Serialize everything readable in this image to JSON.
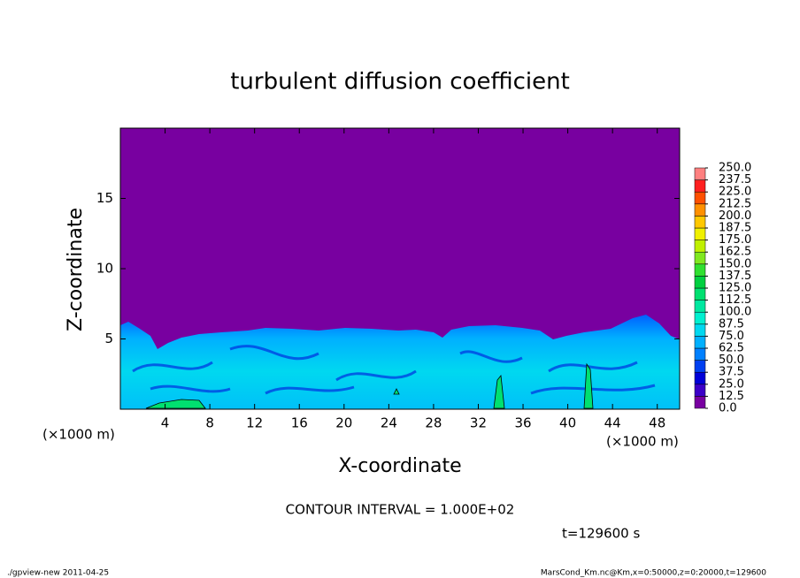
{
  "chart_data": {
    "type": "contour",
    "title": "turbulent diffusion coefficient",
    "x_label": "X-coordinate",
    "y_label": "Z-coordinate",
    "x_unit": "(×1000 m)",
    "y_unit": "(×1000 m)",
    "xlim": [
      0,
      50
    ],
    "ylim": [
      0,
      20
    ],
    "xticks": [
      4,
      8,
      12,
      16,
      20,
      24,
      28,
      32,
      36,
      40,
      44,
      48
    ],
    "yticks": [
      5,
      10,
      15
    ],
    "contour_interval": "CONTOUR INTERVAL = 1.000E+02",
    "time_label": "t=129600 s",
    "footer_left": "./gpview-new  2011-04-25",
    "footer_right": "MarsCond_Km.nc@Km,x=0:50000,z=0:20000,t=129600",
    "colorbar": {
      "lim": [
        0,
        250
      ],
      "ticks": [
        {
          "value": 0,
          "label": "0.0"
        },
        {
          "value": 12.5,
          "label": "12.5"
        },
        {
          "value": 25,
          "label": "25.0"
        },
        {
          "value": 37.5,
          "label": "37.5"
        },
        {
          "value": 50,
          "label": "50.0"
        },
        {
          "value": 62.5,
          "label": "62.5"
        },
        {
          "value": 75,
          "label": "75.0"
        },
        {
          "value": 87.5,
          "label": "87.5"
        },
        {
          "value": 100,
          "label": "100.0"
        },
        {
          "value": 112.5,
          "label": "112.5"
        },
        {
          "value": 125,
          "label": "125.0"
        },
        {
          "value": 137.5,
          "label": "137.5"
        },
        {
          "value": 150,
          "label": "150.0"
        },
        {
          "value": 162.5,
          "label": "162.5"
        },
        {
          "value": 175,
          "label": "175.0"
        },
        {
          "value": 187.5,
          "label": "187.5"
        },
        {
          "value": 200,
          "label": "200.0"
        },
        {
          "value": 212.5,
          "label": "212.5"
        },
        {
          "value": 225,
          "label": "225.0"
        },
        {
          "value": 237.5,
          "label": "237.5"
        },
        {
          "value": 250,
          "label": "250.0"
        }
      ],
      "colors": [
        "#7800a0",
        "#3c00c8",
        "#0000d8",
        "#0040f0",
        "#0080ff",
        "#00b0ff",
        "#00d8f0",
        "#00f0d0",
        "#00e8a0",
        "#00e070",
        "#00d040",
        "#30e030",
        "#80e820",
        "#c0f000",
        "#f0f000",
        "#ffc800",
        "#ff9000",
        "#ff5000",
        "#ff2020",
        "#ff8080"
      ]
    }
  }
}
